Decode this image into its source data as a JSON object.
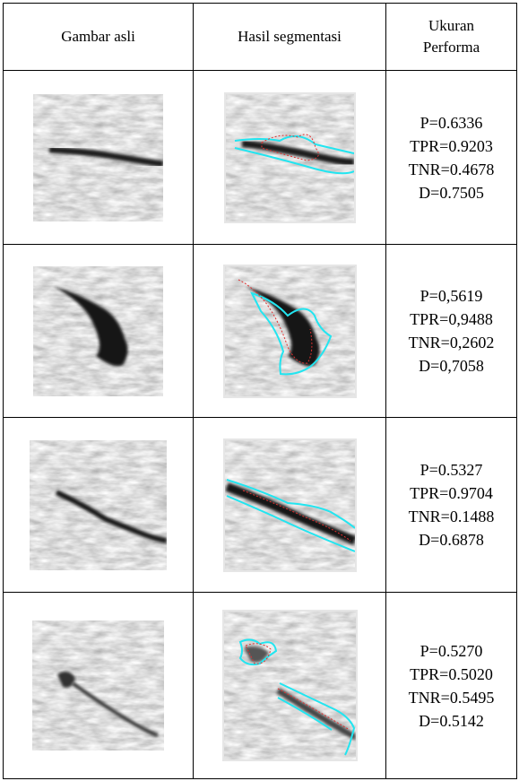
{
  "table": {
    "header": [
      "Gambar asli",
      "Hasil segmentasi",
      "Ukuran Performa"
    ],
    "rows": [
      {
        "metrics": [
          "P=0.6336",
          "TPR=0.9203",
          "TNR=0.4678",
          "D=0.7505"
        ]
      },
      {
        "metrics": [
          "P=0,5619",
          "TPR=0,9488",
          "TNR=0,2602",
          "D=0,7058"
        ]
      },
      {
        "metrics": [
          "P=0.5327",
          "TPR=0.9704",
          "TNR=0.1488",
          "D=0.6878"
        ]
      },
      {
        "metrics": [
          "P=0.5270",
          "TPR=0.5020",
          "TNR=0.5495",
          "D=0.5142"
        ]
      }
    ]
  }
}
